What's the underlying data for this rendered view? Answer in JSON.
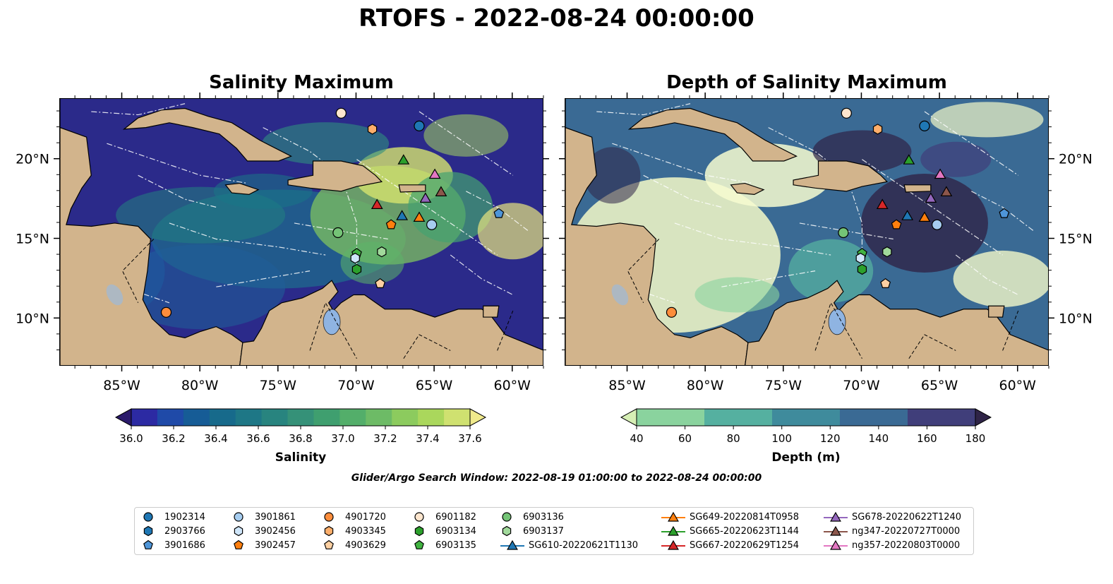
{
  "title": "RTOFS - 2022-08-24 00:00:00",
  "panels": [
    {
      "title": "Salinity Maximum"
    },
    {
      "title": "Depth of Salinity Maximum"
    }
  ],
  "axes": {
    "lon_ticks": [
      "85°W",
      "80°W",
      "75°W",
      "70°W",
      "65°W",
      "60°W"
    ],
    "lat_ticks": [
      "20°N",
      "15°N",
      "10°N"
    ]
  },
  "colorbars": [
    {
      "label": "Salinity",
      "ticks": [
        "36.0",
        "36.2",
        "36.4",
        "36.6",
        "36.8",
        "37.0",
        "37.2",
        "37.4",
        "37.6"
      ],
      "colors": [
        "#2b1a6b",
        "#2c2aa3",
        "#1f4aa8",
        "#165c96",
        "#176a8b",
        "#1e7786",
        "#28847f",
        "#359178",
        "#3f9f6f",
        "#53ae6a",
        "#6dbb66",
        "#8ccb5e",
        "#aad75c",
        "#cfe170",
        "#f0ea8c"
      ]
    },
    {
      "label": "Depth (m)",
      "ticks": [
        "40",
        "60",
        "80",
        "100",
        "120",
        "140",
        "160",
        "180"
      ],
      "colors": [
        "#d6efb5",
        "#8ad39e",
        "#55b0a0",
        "#3f8b9c",
        "#3a6a94",
        "#403e7a",
        "#2f2447"
      ]
    }
  ],
  "search_window": "Glider/Argo Search Window: 2022-08-19 01:00:00 to 2022-08-24 00:00:00",
  "legend": [
    {
      "label": "1902314",
      "color": "#1f77b4",
      "shape": "circle"
    },
    {
      "label": "2903766",
      "color": "#1f77b4",
      "shape": "hexagon"
    },
    {
      "label": "3901686",
      "color": "#4e95d8",
      "shape": "pentagon"
    },
    {
      "label": "3901861",
      "color": "#a6cdf0",
      "shape": "circle"
    },
    {
      "label": "3902456",
      "color": "#cfe6fa",
      "shape": "hexagon"
    },
    {
      "label": "3902457",
      "color": "#ff7f0e",
      "shape": "pentagon"
    },
    {
      "label": "4901720",
      "color": "#fd8d3c",
      "shape": "circle"
    },
    {
      "label": "4903345",
      "color": "#fdae6b",
      "shape": "hexagon"
    },
    {
      "label": "4903629",
      "color": "#fdd0a2",
      "shape": "pentagon"
    },
    {
      "label": "6901182",
      "color": "#fee6ce",
      "shape": "circle"
    },
    {
      "label": "6903134",
      "color": "#2ca02c",
      "shape": "hexagon"
    },
    {
      "label": "6903135",
      "color": "#41b341",
      "shape": "pentagon"
    },
    {
      "label": "6903136",
      "color": "#74c476",
      "shape": "circle"
    },
    {
      "label": "6903137",
      "color": "#a1d99b",
      "shape": "hexagon"
    },
    {
      "label": "SG610-20220621T1130",
      "color": "#1f77b4",
      "shape": "triangle-line"
    },
    {
      "label": "SG649-20220814T0958",
      "color": "#ff7f0e",
      "shape": "triangle-line"
    },
    {
      "label": "SG665-20220623T1144",
      "color": "#2ca02c",
      "shape": "triangle-line"
    },
    {
      "label": "SG667-20220629T1254",
      "color": "#d62728",
      "shape": "triangle-line"
    },
    {
      "label": "SG678-20220622T1240",
      "color": "#9467bd",
      "shape": "triangle-line"
    },
    {
      "label": "ng347-20220727T0000",
      "color": "#8c564b",
      "shape": "triangle-line"
    },
    {
      "label": "ng357-20220803T0000",
      "color": "#e377c2",
      "shape": "triangle-line"
    }
  ],
  "markers": [
    {
      "id": "6901182",
      "shape": "circle",
      "color": "#fee6ce",
      "lon": -71.0,
      "lat": 22.9
    },
    {
      "id": "4903345",
      "shape": "hexagon",
      "color": "#fdae6b",
      "lon": -69.0,
      "lat": 21.9
    },
    {
      "id": "1902314",
      "shape": "circle",
      "color": "#1f77b4",
      "lon": -66.0,
      "lat": 22.1
    },
    {
      "id": "SG665-20220623T1144",
      "shape": "triangle",
      "color": "#2ca02c",
      "lon": -67.0,
      "lat": 19.9
    },
    {
      "id": "ng357-20220803T0000",
      "shape": "triangle",
      "color": "#e377c2",
      "lon": -65.0,
      "lat": 19.0
    },
    {
      "id": "ng347-20220727T0000",
      "shape": "triangle",
      "color": "#8c564b",
      "lon": -64.6,
      "lat": 17.9
    },
    {
      "id": "SG678-20220622T1240",
      "shape": "triangle",
      "color": "#9467bd",
      "lon": -65.6,
      "lat": 17.5
    },
    {
      "id": "SG667-20220629T1254",
      "shape": "triangle",
      "color": "#d62728",
      "lon": -68.7,
      "lat": 17.1
    },
    {
      "id": "SG610-20220621T1130",
      "shape": "triangle",
      "color": "#1f77b4",
      "lon": -67.1,
      "lat": 16.4
    },
    {
      "id": "SG649-20220814T0958",
      "shape": "triangle",
      "color": "#ff7f0e",
      "lon": -66.0,
      "lat": 16.3
    },
    {
      "id": "3902457",
      "shape": "pentagon",
      "color": "#ff7f0e",
      "lon": -67.8,
      "lat": 15.9
    },
    {
      "id": "3901861",
      "shape": "circle",
      "color": "#a6cdf0",
      "lon": -65.2,
      "lat": 15.9
    },
    {
      "id": "3901686",
      "shape": "pentagon",
      "color": "#4e95d8",
      "lon": -60.9,
      "lat": 16.6
    },
    {
      "id": "6903136",
      "shape": "circle",
      "color": "#74c476",
      "lon": -71.2,
      "lat": 15.4
    },
    {
      "id": "6903135",
      "shape": "pentagon",
      "color": "#41b341",
      "lon": -70.0,
      "lat": 14.1
    },
    {
      "id": "3902456",
      "shape": "hexagon",
      "color": "#cfe6fa",
      "lon": -70.1,
      "lat": 13.8
    },
    {
      "id": "6903137",
      "shape": "hexagon",
      "color": "#a1d99b",
      "lon": -68.4,
      "lat": 14.2
    },
    {
      "id": "6903134",
      "shape": "hexagon",
      "color": "#2ca02c",
      "lon": -70.0,
      "lat": 13.1
    },
    {
      "id": "4903629",
      "shape": "pentagon",
      "color": "#fdd0a2",
      "lon": -68.5,
      "lat": 12.2
    },
    {
      "id": "4901720",
      "shape": "circle",
      "color": "#fd8d3c",
      "lon": -82.2,
      "lat": 10.4
    }
  ],
  "colors": {
    "land": "#d2b48c",
    "lake": "#8fb4e2",
    "frame": "#000000"
  }
}
